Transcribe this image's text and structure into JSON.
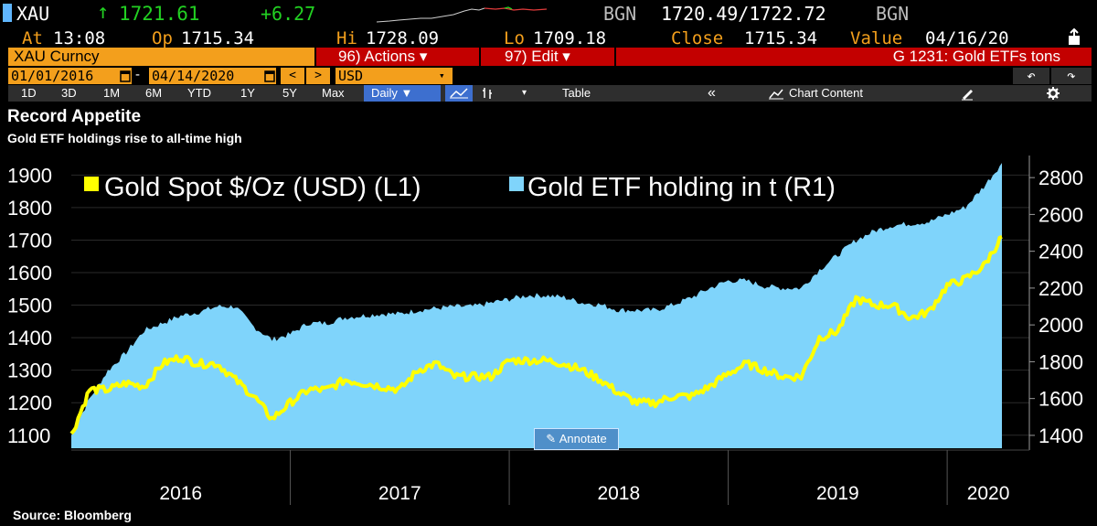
{
  "header": {
    "ticker": "XAU",
    "last_arrow": "↑",
    "last": "1721.61",
    "change": "+6.27",
    "bid_src": "BGN",
    "bid_ask": "1720.49/1722.72",
    "ask_src": "BGN",
    "at_label": "At",
    "at_value": "13:08",
    "op_label": "Op",
    "op_value": "1715.34",
    "hi_label": "Hi",
    "hi_value": "1728.09",
    "lo_label": "Lo",
    "lo_value": "1709.18",
    "close_label": "Close",
    "close_value": "1715.34",
    "value_label": "Value",
    "value_value": "04/16/20"
  },
  "toolbar": {
    "security": "XAU Curncy",
    "actions_label": "96) Actions ▾",
    "edit_label": "97) Edit ▾",
    "function_title": "G 1231: Gold ETFs tons",
    "start_date": "01/01/2016",
    "dash": "-",
    "end_date": "04/14/2020",
    "prev": "<",
    "next": ">",
    "currency": "USD",
    "undo": "↶",
    "redo": "↷"
  },
  "periods": [
    "1D",
    "3D",
    "1M",
    "6M",
    "YTD",
    "1Y",
    "5Y",
    "Max"
  ],
  "frequency": "Daily ▼",
  "view_controls": {
    "table": "Table",
    "collapse": "«",
    "chart_content": "Chart Content"
  },
  "chart_header": {
    "title": "Record Appetite",
    "subtitle": "Gold ETF holdings rise to all-time high"
  },
  "source": "Source: Bloomberg",
  "annotate_label": "Annotate",
  "colors": {
    "accent": "#f39f1c",
    "spot_line": "#ffff00",
    "etf_area": "#7fd4fb",
    "red_button": "#c30000"
  },
  "chart_data": {
    "type": "area",
    "x_axis_labels": [
      "2016",
      "2017",
      "2018",
      "2019",
      "2020"
    ],
    "left_axis": {
      "ticks": [
        "1100",
        "1200",
        "1300",
        "1400",
        "1500",
        "1600",
        "1700",
        "1800",
        "1900"
      ],
      "range": [
        1060,
        1960
      ]
    },
    "right_axis": {
      "ticks": [
        "1400",
        "1600",
        "1800",
        "2000",
        "2200",
        "2400",
        "2600",
        "2800"
      ],
      "range": [
        1330,
        2920
      ]
    },
    "legend_placement": "top-left",
    "series": [
      {
        "name": "Gold Spot $/Oz (USD)  (L1)",
        "axis": "left",
        "kind": "line",
        "x": [
          "2016-01",
          "2016-02",
          "2016-03",
          "2016-04",
          "2016-05",
          "2016-06",
          "2016-07",
          "2016-08",
          "2016-09",
          "2016-10",
          "2016-11",
          "2016-12",
          "2017-01",
          "2017-02",
          "2017-03",
          "2017-04",
          "2017-05",
          "2017-06",
          "2017-07",
          "2017-08",
          "2017-09",
          "2017-10",
          "2017-11",
          "2017-12",
          "2018-01",
          "2018-02",
          "2018-03",
          "2018-04",
          "2018-05",
          "2018-06",
          "2018-07",
          "2018-08",
          "2018-09",
          "2018-10",
          "2018-11",
          "2018-12",
          "2019-01",
          "2019-02",
          "2019-03",
          "2019-04",
          "2019-05",
          "2019-06",
          "2019-07",
          "2019-08",
          "2019-09",
          "2019-10",
          "2019-11",
          "2019-12",
          "2020-01",
          "2020-02",
          "2020-03",
          "2020-04"
        ],
        "values": [
          1100,
          1240,
          1240,
          1260,
          1250,
          1320,
          1340,
          1320,
          1320,
          1270,
          1220,
          1150,
          1200,
          1240,
          1240,
          1270,
          1260,
          1250,
          1240,
          1300,
          1320,
          1280,
          1280,
          1280,
          1330,
          1330,
          1330,
          1320,
          1300,
          1270,
          1230,
          1200,
          1200,
          1220,
          1220,
          1250,
          1290,
          1320,
          1300,
          1280,
          1280,
          1400,
          1420,
          1520,
          1500,
          1500,
          1460,
          1480,
          1560,
          1580,
          1620,
          1710
        ]
      },
      {
        "name": "Gold ETF holding in t (R1)",
        "axis": "right",
        "kind": "area",
        "x": [
          "2016-01",
          "2016-02",
          "2016-03",
          "2016-04",
          "2016-05",
          "2016-06",
          "2016-07",
          "2016-08",
          "2016-09",
          "2016-10",
          "2016-11",
          "2016-12",
          "2017-01",
          "2017-02",
          "2017-03",
          "2017-04",
          "2017-05",
          "2017-06",
          "2017-07",
          "2017-08",
          "2017-09",
          "2017-10",
          "2017-11",
          "2017-12",
          "2018-01",
          "2018-02",
          "2018-03",
          "2018-04",
          "2018-05",
          "2018-06",
          "2018-07",
          "2018-08",
          "2018-09",
          "2018-10",
          "2018-11",
          "2018-12",
          "2019-01",
          "2019-02",
          "2019-03",
          "2019-04",
          "2019-05",
          "2019-06",
          "2019-07",
          "2019-08",
          "2019-09",
          "2019-10",
          "2019-11",
          "2019-12",
          "2020-01",
          "2020-02",
          "2020-03",
          "2020-04"
        ],
        "values": [
          1400,
          1600,
          1750,
          1850,
          1970,
          2010,
          2050,
          2070,
          2100,
          2100,
          1990,
          1920,
          1950,
          2010,
          2010,
          2040,
          2050,
          2060,
          2060,
          2080,
          2090,
          2100,
          2100,
          2120,
          2140,
          2160,
          2160,
          2150,
          2120,
          2110,
          2080,
          2080,
          2080,
          2110,
          2150,
          2200,
          2240,
          2240,
          2210,
          2200,
          2200,
          2300,
          2380,
          2460,
          2510,
          2540,
          2550,
          2560,
          2600,
          2640,
          2750,
          2880
        ]
      }
    ]
  }
}
